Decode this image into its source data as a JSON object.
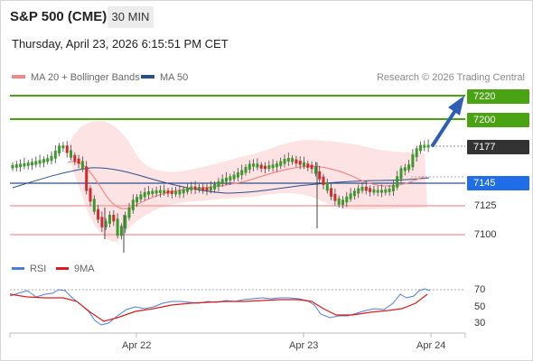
{
  "header": {
    "title": "S&P 500 (CME)",
    "timeframe": "30 MIN"
  },
  "datetime": "Thursday, April 23, 2026 6:15:51 PM CET",
  "legend": {
    "ma20": {
      "label": "MA 20 + Bollinger Bands",
      "color": "#f08a8a"
    },
    "ma50": {
      "label": "MA 50",
      "color": "#2c4f8c"
    }
  },
  "copyright": "Research © 2026 Trading Central",
  "levels": {
    "target2": "7220",
    "target1": "7200",
    "last": "7177",
    "pivot": "7145",
    "support1": "7125",
    "support2": "7100"
  },
  "rsi_legend": {
    "rsi": {
      "label": "RSI",
      "color": "#4a7fe0"
    },
    "ma9": {
      "label": "9MA",
      "color": "#e01b1b"
    }
  },
  "rsi_levels": [
    "70",
    "50",
    "30"
  ],
  "x_labels": [
    "Apr 22",
    "Apr 23",
    "Apr 24"
  ],
  "colors": {
    "bull": "#3a9a2a",
    "bear": "#d12a2a",
    "resistance": "#4aa312",
    "support": "#f5a3a3",
    "pivot": "#2c4f8c",
    "arrow": "#2f5fb3"
  }
}
